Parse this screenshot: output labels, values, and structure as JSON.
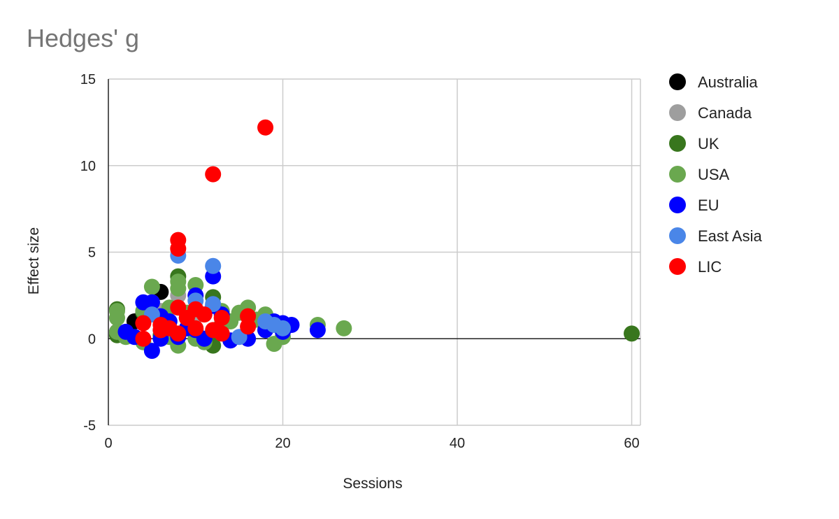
{
  "chart_data": {
    "type": "scatter",
    "title": "Hedges' g",
    "xlabel": "Sessions",
    "ylabel": "Effect size",
    "xlim": [
      0,
      61
    ],
    "ylim": [
      -5,
      15
    ],
    "xticks": [
      "0",
      "20",
      "40",
      "60"
    ],
    "xtick_values": [
      0,
      20,
      40,
      60
    ],
    "yticks": [
      "-5",
      "0",
      "5",
      "10",
      "15"
    ],
    "ytick_values": [
      -5,
      0,
      5,
      10,
      15
    ],
    "grid": true,
    "legend_position": "right",
    "series": [
      {
        "name": "Australia",
        "color": "#000000",
        "points": [
          [
            6,
            2.7
          ],
          [
            1,
            0.4
          ],
          [
            3,
            1.0
          ]
        ]
      },
      {
        "name": "Canada",
        "color": "#9e9e9e",
        "points": [
          [
            8,
            2.5
          ],
          [
            10,
            1.3
          ],
          [
            6,
            1.6
          ]
        ]
      },
      {
        "name": "UK",
        "color": "#38761d",
        "points": [
          [
            60,
            0.3
          ],
          [
            1,
            1.7
          ],
          [
            1,
            0.2
          ],
          [
            8,
            3.6
          ],
          [
            12,
            2.4
          ],
          [
            12,
            -0.4
          ],
          [
            9,
            1.2
          ],
          [
            13,
            0.8
          ],
          [
            4,
            1.5
          ],
          [
            6,
            0.2
          ]
        ]
      },
      {
        "name": "USA",
        "color": "#6aa84f",
        "points": [
          [
            1,
            1.6
          ],
          [
            1,
            1.2
          ],
          [
            1,
            0.4
          ],
          [
            2,
            0.1
          ],
          [
            4,
            1.6
          ],
          [
            4,
            -0.2
          ],
          [
            5,
            3.0
          ],
          [
            5,
            2.1
          ],
          [
            7,
            1.8
          ],
          [
            7,
            0.1
          ],
          [
            8,
            3.3
          ],
          [
            8,
            2.9
          ],
          [
            8,
            -0.4
          ],
          [
            9,
            1.5
          ],
          [
            10,
            3.1
          ],
          [
            10,
            0.0
          ],
          [
            11,
            -0.2
          ],
          [
            13,
            1.6
          ],
          [
            14,
            1.0
          ],
          [
            15,
            1.5
          ],
          [
            16,
            1.8
          ],
          [
            17,
            1.1
          ],
          [
            18,
            1.4
          ],
          [
            18,
            0.5
          ],
          [
            19,
            -0.3
          ],
          [
            20,
            0.1
          ],
          [
            24,
            0.8
          ],
          [
            27,
            0.6
          ]
        ]
      },
      {
        "name": "EU",
        "color": "#0000ff",
        "points": [
          [
            2,
            0.4
          ],
          [
            3,
            0.1
          ],
          [
            4,
            2.1
          ],
          [
            5,
            2.1
          ],
          [
            5,
            -0.7
          ],
          [
            6,
            1.3
          ],
          [
            6,
            0.0
          ],
          [
            7,
            1.0
          ],
          [
            8,
            0.1
          ],
          [
            9,
            0.6
          ],
          [
            10,
            2.5
          ],
          [
            10,
            0.5
          ],
          [
            11,
            0.0
          ],
          [
            12,
            3.6
          ],
          [
            12,
            1.9
          ],
          [
            13,
            1.4
          ],
          [
            14,
            -0.1
          ],
          [
            16,
            0.0
          ],
          [
            18,
            0.5
          ],
          [
            19,
            1.0
          ],
          [
            20,
            0.9
          ],
          [
            20,
            0.4
          ],
          [
            21,
            0.8
          ],
          [
            24,
            0.5
          ]
        ]
      },
      {
        "name": "East Asia",
        "color": "#4a86e8",
        "points": [
          [
            5,
            1.4
          ],
          [
            6,
            0.5
          ],
          [
            8,
            4.8
          ],
          [
            10,
            2.2
          ],
          [
            12,
            4.2
          ],
          [
            12,
            2.0
          ],
          [
            15,
            0.1
          ],
          [
            18,
            1.0
          ],
          [
            19,
            0.8
          ],
          [
            20,
            0.6
          ]
        ]
      },
      {
        "name": "LIC",
        "color": "#ff0000",
        "points": [
          [
            18,
            12.2
          ],
          [
            12,
            9.5
          ],
          [
            8,
            5.7
          ],
          [
            8,
            5.2
          ],
          [
            4,
            0.9
          ],
          [
            4,
            0.0
          ],
          [
            6,
            0.8
          ],
          [
            6,
            0.5
          ],
          [
            7,
            0.6
          ],
          [
            8,
            1.8
          ],
          [
            8,
            0.3
          ],
          [
            9,
            1.2
          ],
          [
            10,
            1.7
          ],
          [
            10,
            0.6
          ],
          [
            11,
            1.4
          ],
          [
            12,
            0.5
          ],
          [
            13,
            1.2
          ],
          [
            13,
            0.3
          ],
          [
            16,
            1.3
          ],
          [
            16,
            0.7
          ]
        ]
      }
    ]
  }
}
